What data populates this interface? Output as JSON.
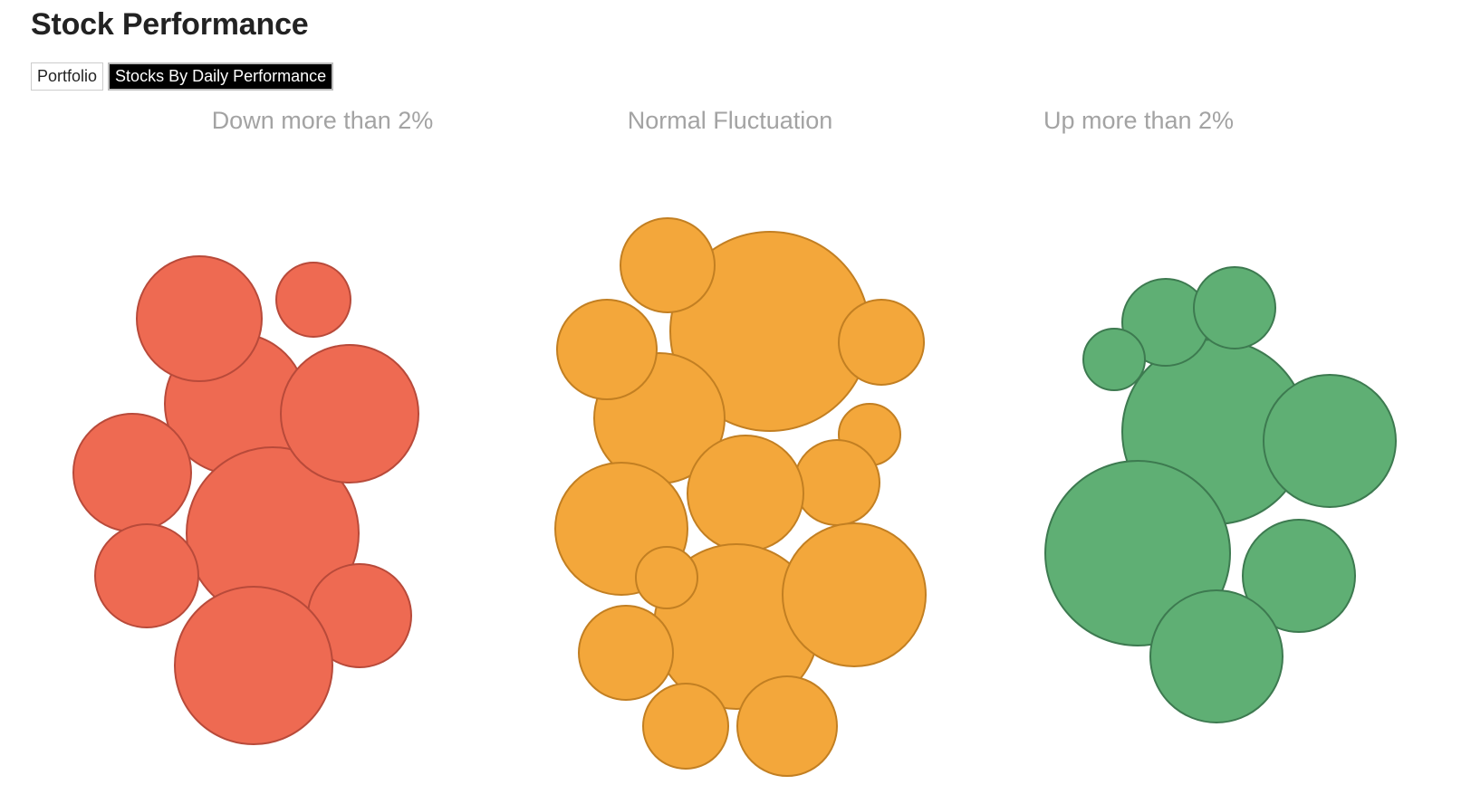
{
  "title": "Stock Performance",
  "tabs": [
    {
      "label": "Portfolio",
      "active": false
    },
    {
      "label": "Stocks By Daily Performance",
      "active": true
    }
  ],
  "chart_data": {
    "type": "bubble",
    "groups": [
      {
        "label": "Down more than 2%",
        "fill": "#ee6a52",
        "stroke": "#b84a3a",
        "bubble_count": 10
      },
      {
        "label": "Normal Fluctuation",
        "fill": "#f3a73b",
        "stroke": "#c27f22",
        "bubble_count": 16
      },
      {
        "label": "Up more than 2%",
        "fill": "#5faf74",
        "stroke": "#3d7a50",
        "bubble_count": 9
      }
    ]
  }
}
